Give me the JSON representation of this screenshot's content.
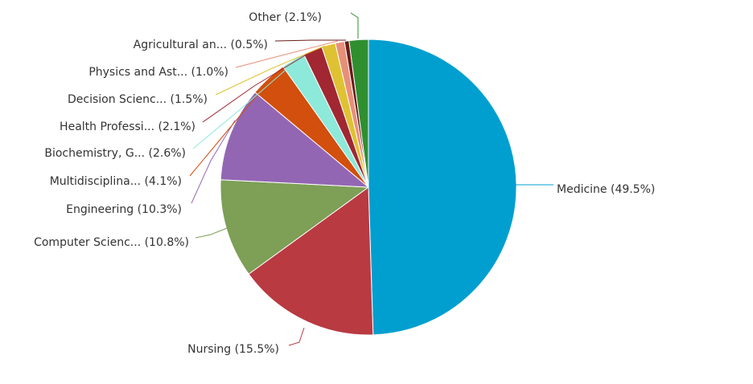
{
  "chart_data": {
    "type": "pie",
    "title": "",
    "start_angle_deg": 0,
    "direction": "clockwise",
    "legend": "none",
    "slices": [
      {
        "label": "Medicine (49.5%)",
        "name": "Medicine",
        "value": 49.5,
        "color": "#009fd0"
      },
      {
        "label": "Nursing (15.5%)",
        "name": "Nursing",
        "value": 15.5,
        "color": "#b93a41"
      },
      {
        "label": "Computer Scienc... (10.8%)",
        "name": "Computer Scienc...",
        "value": 10.8,
        "color": "#7d9f56"
      },
      {
        "label": "Engineering (10.3%)",
        "name": "Engineering",
        "value": 10.3,
        "color": "#9366b3"
      },
      {
        "label": "Multidisciplina... (4.1%)",
        "name": "Multidisciplina...",
        "value": 4.1,
        "color": "#d24f0d"
      },
      {
        "label": "Biochemistry, G... (2.6%)",
        "name": "Biochemistry, G...",
        "value": 2.6,
        "color": "#8de9d9"
      },
      {
        "label": "Health Professi... (2.1%)",
        "name": "Health Professi...",
        "value": 2.1,
        "color": "#a12732"
      },
      {
        "label": "Decision Scienc... (1.5%)",
        "name": "Decision Scienc...",
        "value": 1.5,
        "color": "#dfc233"
      },
      {
        "label": "Physics and Ast... (1.0%)",
        "name": "Physics and Ast...",
        "value": 1.0,
        "color": "#e79079"
      },
      {
        "label": "Agricultural an... (0.5%)",
        "name": "Agricultural an...",
        "value": 0.5,
        "color": "#6b1a1a"
      },
      {
        "label": "Other (2.1%)",
        "name": "Other",
        "value": 2.1,
        "color": "#2f8f2f"
      }
    ]
  }
}
